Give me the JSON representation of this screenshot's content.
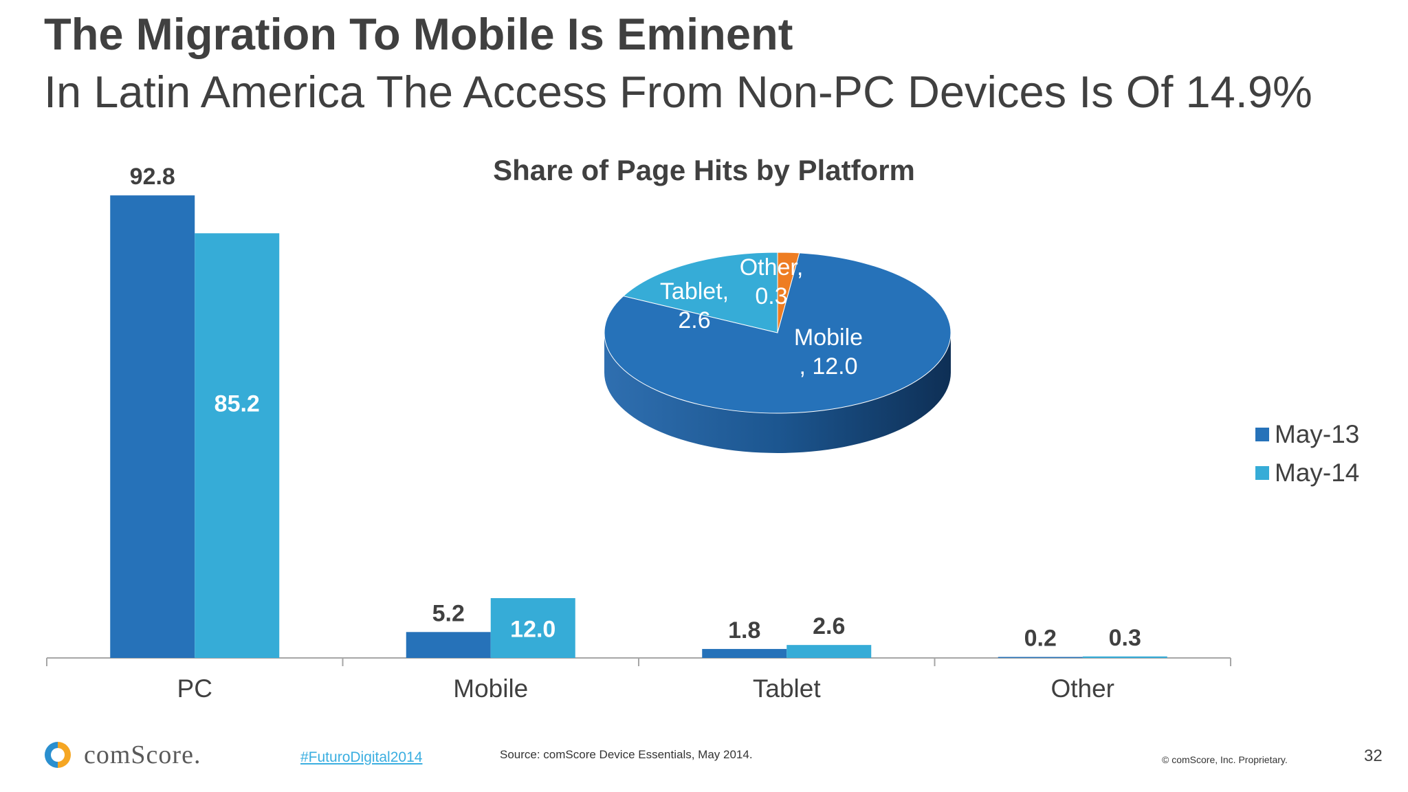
{
  "slide": {
    "title": "The Migration To Mobile Is Eminent",
    "subtitle": "In Latin America The Access From Non-PC Devices Is Of 14.9%",
    "page_number": "32"
  },
  "footer": {
    "logo_text": "comScore.",
    "hashtag": "#FuturoDigital2014",
    "source": "Source: comScore Device Essentials, May 2014.",
    "copyright": "© comScore, Inc. Proprietary."
  },
  "colors": {
    "may13": "#2672b9",
    "may14": "#36acd7",
    "other_slice": "#ee7d22",
    "axis": "#a6a6a6"
  },
  "chart_data": [
    {
      "type": "bar",
      "title": "Share of Page Hits by Platform",
      "categories": [
        "PC",
        "Mobile",
        "Tablet",
        "Other"
      ],
      "series": [
        {
          "name": "May-13",
          "values": [
            92.8,
            5.2,
            1.8,
            0.2
          ],
          "labels": [
            "92.8",
            "5.2",
            "1.8",
            "0.2"
          ]
        },
        {
          "name": "May-14",
          "values": [
            85.2,
            12.0,
            2.6,
            0.3
          ],
          "labels": [
            "85.2",
            "12.0",
            "2.6",
            "0.3"
          ]
        }
      ],
      "ylim": [
        0,
        100
      ],
      "grid": false,
      "legend": "right"
    },
    {
      "type": "pie",
      "slices": [
        {
          "label": "Mobile",
          "value": 12.0,
          "text_line1": "Mobile",
          "text_line2": ", 12.0"
        },
        {
          "label": "Tablet",
          "value": 2.6,
          "text_line1": "Tablet,",
          "text_line2": "2.6"
        },
        {
          "label": "Other",
          "value": 0.3,
          "text_line1": "Other,",
          "text_line2": "0.3"
        }
      ]
    }
  ]
}
